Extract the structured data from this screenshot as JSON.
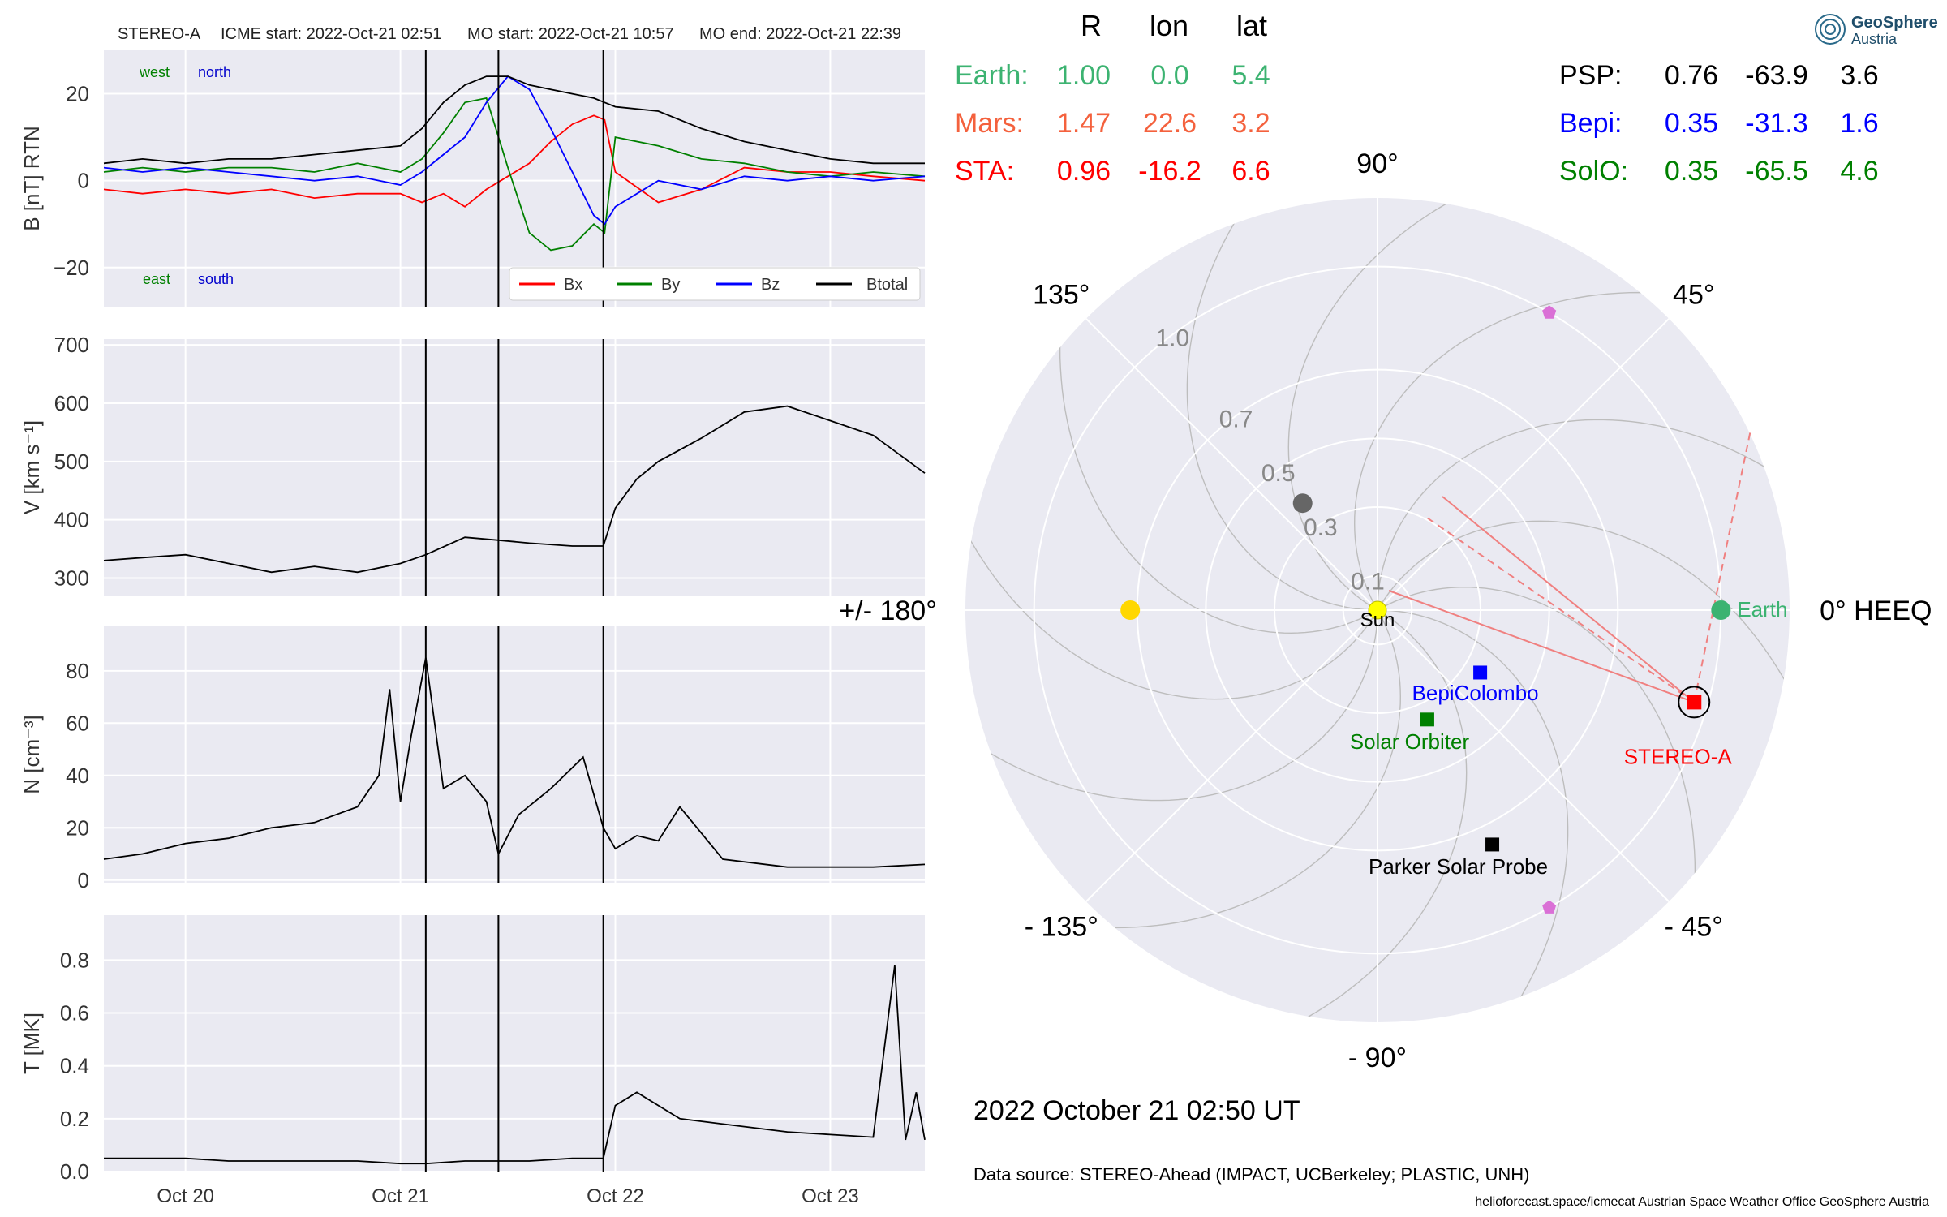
{
  "header": {
    "spacecraft": "STEREO-A",
    "icme_start": "ICME start: 2022-Oct-21 02:51",
    "mo_start": "MO start: 2022-Oct-21 10:57",
    "mo_end": "MO end: 2022-Oct-21 22:39"
  },
  "logo": {
    "name": "GeoSphere",
    "sub": "Austria"
  },
  "date_label": "2022 October 21  02:50 UT",
  "data_source": "Data source: STEREO-Ahead (IMPACT, UCBerkeley; PLASTIC, UNH)",
  "footer": "helioforecast.space/icmecat   Austrian Space Weather Office   GeoSphere Austria",
  "position_table": {
    "headers": [
      "R",
      "lon",
      "lat"
    ],
    "left_rows": [
      {
        "name": "Earth:",
        "R": "1.00",
        "lon": "0.0",
        "lat": "5.4",
        "color": "#3cb371"
      },
      {
        "name": "Mars:",
        "R": "1.47",
        "lon": "22.6",
        "lat": "3.2",
        "color": "#f4613d"
      },
      {
        "name": "STA:",
        "R": "0.96",
        "lon": "-16.2",
        "lat": "6.6",
        "color": "#ff0000"
      }
    ],
    "right_rows": [
      {
        "name": "PSP:",
        "R": "0.76",
        "lon": "-63.9",
        "lat": "3.6",
        "color": "#000000"
      },
      {
        "name": "Bepi:",
        "R": "0.35",
        "lon": "-31.3",
        "lat": "1.6",
        "color": "#0000ff"
      },
      {
        "name": "SolO:",
        "R": "0.35",
        "lon": "-65.5",
        "lat": "4.6",
        "color": "#008000"
      }
    ]
  },
  "chart_data": [
    {
      "type": "line",
      "ylabel": "B [nT] RTN",
      "ylim": [
        -29,
        30
      ],
      "yticks": [
        20,
        0,
        -20
      ],
      "ytick_labels": [
        "20",
        "0",
        "−20"
      ],
      "xlim": [
        19.62,
        23.44
      ],
      "vlines": [
        21.118,
        21.456,
        21.944
      ],
      "corner_labels": [
        {
          "text": "west",
          "color": "#008000"
        },
        {
          "text": "north",
          "color": "#0000cc"
        },
        {
          "text": "east",
          "color": "#008000"
        },
        {
          "text": "south",
          "color": "#0000cc"
        }
      ],
      "legend": [
        "Bx",
        "By",
        "Bz",
        "Btotal"
      ],
      "series": [
        {
          "name": "Bx",
          "color": "#ff0000",
          "x": [
            19.62,
            19.8,
            20.0,
            20.2,
            20.4,
            20.6,
            20.8,
            21.0,
            21.1,
            21.2,
            21.3,
            21.4,
            21.5,
            21.6,
            21.7,
            21.8,
            21.9,
            21.95,
            22.0,
            22.2,
            22.4,
            22.6,
            22.8,
            23.0,
            23.2,
            23.44
          ],
          "values": [
            -2,
            -3,
            -2,
            -3,
            -2,
            -4,
            -3,
            -3,
            -5,
            -3,
            -6,
            -2,
            1,
            4,
            9,
            13,
            15,
            14,
            2,
            -5,
            -2,
            3,
            2,
            2,
            1,
            0
          ]
        },
        {
          "name": "By",
          "color": "#008000",
          "x": [
            19.62,
            19.8,
            20.0,
            20.2,
            20.4,
            20.6,
            20.8,
            21.0,
            21.1,
            21.2,
            21.3,
            21.4,
            21.5,
            21.6,
            21.7,
            21.8,
            21.9,
            21.95,
            22.0,
            22.2,
            22.4,
            22.6,
            22.8,
            23.0,
            23.2,
            23.44
          ],
          "values": [
            2,
            3,
            2,
            3,
            3,
            2,
            4,
            2,
            5,
            11,
            18,
            19,
            3,
            -12,
            -16,
            -15,
            -10,
            -12,
            10,
            8,
            5,
            4,
            2,
            1,
            2,
            1
          ]
        },
        {
          "name": "Bz",
          "color": "#0000ff",
          "x": [
            19.62,
            19.8,
            20.0,
            20.2,
            20.4,
            20.6,
            20.8,
            21.0,
            21.1,
            21.2,
            21.3,
            21.4,
            21.5,
            21.6,
            21.7,
            21.8,
            21.9,
            21.95,
            22.0,
            22.2,
            22.4,
            22.6,
            22.8,
            23.0,
            23.2,
            23.44
          ],
          "values": [
            3,
            2,
            3,
            2,
            1,
            0,
            1,
            -1,
            2,
            6,
            10,
            18,
            24,
            21,
            12,
            2,
            -8,
            -10,
            -6,
            0,
            -2,
            1,
            0,
            1,
            0,
            1
          ]
        },
        {
          "name": "Btotal",
          "color": "#000000",
          "x": [
            19.62,
            19.8,
            20.0,
            20.2,
            20.4,
            20.6,
            20.8,
            21.0,
            21.1,
            21.2,
            21.3,
            21.4,
            21.5,
            21.6,
            21.7,
            21.8,
            21.9,
            21.95,
            22.0,
            22.2,
            22.4,
            22.6,
            22.8,
            23.0,
            23.2,
            23.44
          ],
          "values": [
            4,
            5,
            4,
            5,
            5,
            6,
            7,
            8,
            12,
            18,
            22,
            24,
            24,
            22,
            21,
            20,
            19,
            18,
            17,
            16,
            12,
            9,
            7,
            5,
            4,
            4
          ]
        }
      ]
    },
    {
      "type": "line",
      "ylabel": "V [km s⁻¹]",
      "ylim": [
        270,
        710
      ],
      "yticks": [
        700,
        600,
        500,
        400,
        300
      ],
      "ytick_labels": [
        "700",
        "600",
        "500",
        "400",
        "300"
      ],
      "xlim": [
        19.62,
        23.44
      ],
      "vlines": [
        21.118,
        21.456,
        21.944
      ],
      "series": [
        {
          "name": "V",
          "color": "#000000",
          "x": [
            19.62,
            19.8,
            20.0,
            20.2,
            20.4,
            20.6,
            20.8,
            21.0,
            21.118,
            21.3,
            21.456,
            21.6,
            21.8,
            21.944,
            22.0,
            22.1,
            22.2,
            22.4,
            22.6,
            22.8,
            23.0,
            23.2,
            23.44
          ],
          "values": [
            330,
            335,
            340,
            325,
            310,
            320,
            310,
            325,
            340,
            370,
            365,
            360,
            355,
            355,
            420,
            470,
            500,
            540,
            585,
            595,
            570,
            545,
            480
          ]
        }
      ]
    },
    {
      "type": "line",
      "ylabel": "N [cm⁻³]",
      "ylim": [
        -1,
        97
      ],
      "yticks": [
        80,
        60,
        40,
        20,
        0
      ],
      "ytick_labels": [
        "80",
        "60",
        "40",
        "20",
        "0"
      ],
      "xlim": [
        19.62,
        23.44
      ],
      "vlines": [
        21.118,
        21.456,
        21.944
      ],
      "series": [
        {
          "name": "N",
          "color": "#000000",
          "x": [
            19.62,
            19.8,
            20.0,
            20.2,
            20.4,
            20.6,
            20.8,
            20.9,
            20.95,
            21.0,
            21.05,
            21.118,
            21.2,
            21.3,
            21.4,
            21.456,
            21.55,
            21.7,
            21.85,
            21.944,
            22.0,
            22.1,
            22.2,
            22.3,
            22.5,
            22.8,
            23.0,
            23.2,
            23.44
          ],
          "values": [
            8,
            10,
            14,
            16,
            20,
            22,
            28,
            40,
            73,
            30,
            55,
            85,
            35,
            40,
            30,
            10,
            25,
            35,
            47,
            20,
            12,
            17,
            15,
            28,
            8,
            5,
            5,
            5,
            6
          ]
        }
      ]
    },
    {
      "type": "line",
      "ylabel": "T [MK]",
      "ylim": [
        0,
        0.97
      ],
      "yticks": [
        0.8,
        0.6,
        0.4,
        0.2,
        0.0
      ],
      "ytick_labels": [
        "0.8",
        "0.6",
        "0.4",
        "0.2",
        "0.0"
      ],
      "xlim": [
        19.62,
        23.44
      ],
      "vlines": [
        21.118,
        21.456,
        21.944
      ],
      "xticks": [
        20,
        21,
        22,
        23
      ],
      "xtick_labels": [
        "Oct 20",
        "Oct 21",
        "Oct 22",
        "Oct 23"
      ],
      "series": [
        {
          "name": "T",
          "color": "#000000",
          "x": [
            19.62,
            19.8,
            20.0,
            20.2,
            20.4,
            20.6,
            20.8,
            21.0,
            21.118,
            21.3,
            21.456,
            21.6,
            21.8,
            21.944,
            22.0,
            22.1,
            22.2,
            22.3,
            22.5,
            22.8,
            23.0,
            23.2,
            23.3,
            23.35,
            23.4,
            23.44
          ],
          "values": [
            0.05,
            0.05,
            0.05,
            0.04,
            0.04,
            0.04,
            0.04,
            0.03,
            0.03,
            0.04,
            0.04,
            0.04,
            0.05,
            0.05,
            0.25,
            0.3,
            0.25,
            0.2,
            0.18,
            0.15,
            0.14,
            0.13,
            0.78,
            0.12,
            0.3,
            0.12
          ]
        }
      ]
    },
    {
      "type": "scatter",
      "subtype": "polar",
      "r_ticks": [
        0.1,
        0.3,
        0.5,
        0.7,
        1.0
      ],
      "r_tick_labels": [
        "0.1",
        "0.3",
        "0.5",
        "0.7",
        "1.0"
      ],
      "angle_labels": [
        {
          "angle": 0,
          "text": "0° HEEQ"
        },
        {
          "angle": 45,
          "text": "45°"
        },
        {
          "angle": 90,
          "text": "90°"
        },
        {
          "angle": 135,
          "text": "135°"
        },
        {
          "angle": 180,
          "text": "+/- 180°"
        },
        {
          "angle": -135,
          "text": "- 135°"
        },
        {
          "angle": -90,
          "text": "- 90°"
        },
        {
          "angle": -45,
          "text": "- 45°"
        }
      ],
      "rmax": 1.2,
      "bodies": [
        {
          "name": "Sun",
          "label": "Sun",
          "r": 0.0,
          "lon": 0,
          "color": "#ffff00",
          "shape": "circle"
        },
        {
          "name": "Earth",
          "label": "Earth",
          "r": 1.0,
          "lon": 0.0,
          "color": "#3cb371",
          "shape": "circle"
        },
        {
          "name": "STEREO-A",
          "label": "STEREO-A",
          "r": 0.96,
          "lon": -16.2,
          "color": "#ff0000",
          "shape": "square"
        },
        {
          "name": "BepiColombo",
          "label": "BepiColombo",
          "r": 0.35,
          "lon": -31.3,
          "color": "#0000ff",
          "shape": "square"
        },
        {
          "name": "Solar Orbiter",
          "label": "Solar Orbiter",
          "r": 0.35,
          "lon": -65.5,
          "color": "#008000",
          "shape": "square"
        },
        {
          "name": "Parker Solar Probe",
          "label": "Parker Solar Probe",
          "r": 0.76,
          "lon": -63.9,
          "color": "#000000",
          "shape": "square"
        },
        {
          "name": "Mercury",
          "label": "",
          "r": 0.38,
          "lon": 125,
          "color": "#666666",
          "shape": "circle"
        },
        {
          "name": "Venus",
          "label": "",
          "r": 0.72,
          "lon": 180,
          "color": "#ffd700",
          "shape": "circle"
        },
        {
          "name": "L4-marker",
          "label": "",
          "r": 1.0,
          "lon": 60,
          "color": "#da70d6",
          "shape": "pentagon"
        },
        {
          "name": "L5-marker",
          "label": "",
          "r": 1.0,
          "lon": -60,
          "color": "#da70d6",
          "shape": "pentagon"
        }
      ]
    }
  ]
}
